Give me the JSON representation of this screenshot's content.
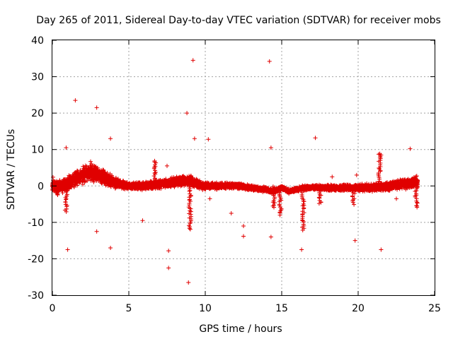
{
  "chart_data": {
    "type": "scatter",
    "title": "Day 265 of 2011, Sidereal Day-to-day VTEC variation (SDTVAR) for receiver mobs",
    "xlabel": "GPS time / hours",
    "ylabel": "SDTVAR / TECUs",
    "xlim": [
      0,
      25
    ],
    "ylim": [
      -30,
      40
    ],
    "x_ticks": [
      0,
      5,
      10,
      15,
      20,
      25
    ],
    "y_ticks": [
      -30,
      -20,
      -10,
      0,
      10,
      20,
      30,
      40
    ],
    "x_tick_labels": [
      "0",
      "5",
      "10",
      "15",
      "20",
      "25"
    ],
    "y_tick_labels": [
      "-30",
      "-20",
      "-10",
      "0",
      "10",
      "20",
      "30",
      "40"
    ],
    "grid": true,
    "marker": "+",
    "color": "#e00000",
    "series": [
      {
        "name": "SDTVAR",
        "baseline": [
          [
            0.0,
            0.5
          ],
          [
            0.3,
            -0.5
          ],
          [
            0.6,
            0.0
          ],
          [
            1.0,
            0.5
          ],
          [
            1.5,
            2.0
          ],
          [
            2.0,
            3.0
          ],
          [
            2.5,
            4.0
          ],
          [
            3.0,
            3.0
          ],
          [
            3.5,
            2.0
          ],
          [
            4.0,
            1.0
          ],
          [
            4.5,
            0.5
          ],
          [
            5.0,
            0.0
          ],
          [
            6.0,
            0.0
          ],
          [
            7.0,
            0.5
          ],
          [
            8.0,
            1.0
          ],
          [
            9.0,
            1.5
          ],
          [
            9.5,
            0.5
          ],
          [
            10.0,
            0.0
          ],
          [
            11.0,
            0.0
          ],
          [
            12.0,
            0.0
          ],
          [
            13.0,
            -0.5
          ],
          [
            14.0,
            -1.0
          ],
          [
            14.5,
            -1.5
          ],
          [
            15.0,
            -0.5
          ],
          [
            15.5,
            -1.5
          ],
          [
            16.0,
            -1.0
          ],
          [
            16.5,
            -0.5
          ],
          [
            17.0,
            -0.5
          ],
          [
            18.0,
            -0.5
          ],
          [
            19.0,
            -0.5
          ],
          [
            20.0,
            -0.5
          ],
          [
            21.0,
            -0.5
          ],
          [
            22.0,
            0.0
          ],
          [
            23.0,
            0.5
          ],
          [
            23.9,
            1.0
          ]
        ],
        "spread": [
          [
            0.0,
            2.5
          ],
          [
            1.0,
            2.5
          ],
          [
            2.0,
            3.0
          ],
          [
            3.0,
            3.0
          ],
          [
            4.0,
            2.0
          ],
          [
            5.0,
            1.2
          ],
          [
            7.0,
            1.5
          ],
          [
            9.0,
            2.0
          ],
          [
            10.0,
            1.2
          ],
          [
            12.0,
            1.0
          ],
          [
            14.0,
            0.8
          ],
          [
            16.0,
            0.8
          ],
          [
            18.0,
            1.0
          ],
          [
            20.0,
            1.2
          ],
          [
            22.0,
            1.5
          ],
          [
            23.9,
            2.0
          ]
        ],
        "excursions": [
          {
            "x": 9.0,
            "y_from": 0,
            "y_to": -12
          },
          {
            "x": 14.5,
            "y_from": 0,
            "y_to": -6
          },
          {
            "x": 14.9,
            "y_from": -1,
            "y_to": -8
          },
          {
            "x": 16.4,
            "y_from": -2,
            "y_to": -12
          },
          {
            "x": 17.5,
            "y_from": 0,
            "y_to": -5
          },
          {
            "x": 19.7,
            "y_from": -1,
            "y_to": -5
          },
          {
            "x": 21.4,
            "y_from": -1,
            "y_to": 9
          },
          {
            "x": 23.8,
            "y_from": 0,
            "y_to": -6
          },
          {
            "x": 6.7,
            "y_from": 0,
            "y_to": 7
          },
          {
            "x": 0.9,
            "y_from": -1,
            "y_to": -7
          }
        ],
        "outliers": [
          [
            0.9,
            10.5
          ],
          [
            1.0,
            -17.5
          ],
          [
            1.5,
            23.5
          ],
          [
            2.9,
            21.5
          ],
          [
            2.9,
            -12.5
          ],
          [
            3.8,
            13.0
          ],
          [
            3.8,
            -17.0
          ],
          [
            5.9,
            -9.5
          ],
          [
            7.5,
            5.5
          ],
          [
            7.6,
            -17.8
          ],
          [
            7.6,
            -22.5
          ],
          [
            8.8,
            20.0
          ],
          [
            8.9,
            -26.5
          ],
          [
            9.2,
            34.5
          ],
          [
            9.3,
            13.0
          ],
          [
            10.2,
            12.8
          ],
          [
            10.3,
            -3.5
          ],
          [
            11.7,
            -7.5
          ],
          [
            12.5,
            -11.0
          ],
          [
            12.5,
            -13.8
          ],
          [
            14.2,
            34.2
          ],
          [
            14.3,
            10.5
          ],
          [
            14.3,
            -14.0
          ],
          [
            16.3,
            -17.5
          ],
          [
            17.2,
            13.2
          ],
          [
            18.3,
            2.5
          ],
          [
            19.8,
            -15.0
          ],
          [
            19.9,
            3.0
          ],
          [
            21.5,
            -17.5
          ],
          [
            23.4,
            10.2
          ],
          [
            21.5,
            8.5
          ],
          [
            22.5,
            -3.5
          ]
        ]
      }
    ]
  }
}
